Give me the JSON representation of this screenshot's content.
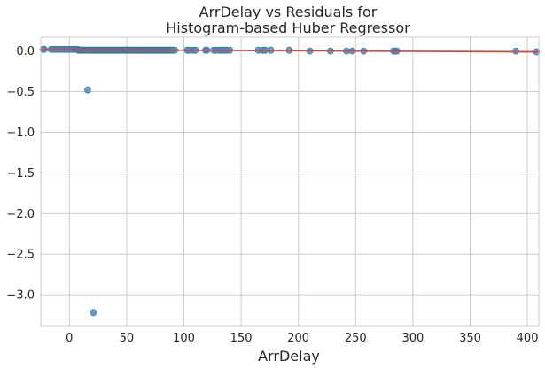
{
  "chart_data": {
    "type": "scatter",
    "title_lines": [
      "ArrDelay vs Residuals for",
      "Histogram-based Huber Regressor"
    ],
    "xlabel": "ArrDelay",
    "ylabel": "",
    "xlim": [
      -25,
      410
    ],
    "ylim": [
      -3.38,
      0.17
    ],
    "xticks": [
      0,
      50,
      100,
      150,
      200,
      250,
      300,
      350,
      400
    ],
    "yticks": [
      0.0,
      -0.5,
      -1.0,
      -1.5,
      -2.0,
      -2.5,
      -3.0
    ],
    "grid": true,
    "point_color": "#4c8bbf",
    "point_edge_color": "#3a6f9c",
    "fit_line_color": "#d9453d",
    "fit_line": {
      "x": [
        -25,
        410
      ],
      "y": [
        0.02,
        -0.012
      ]
    },
    "points": {
      "x": [
        -23,
        -22,
        -16,
        -14,
        -12,
        -10,
        -8,
        -6,
        -4,
        -2,
        0,
        2,
        4,
        6,
        7,
        8,
        9,
        10,
        11,
        12,
        13,
        14,
        15,
        16,
        17,
        18,
        19,
        20,
        21,
        22,
        23,
        24,
        25,
        26,
        27,
        28,
        29,
        30,
        31,
        32,
        33,
        34,
        35,
        36,
        37,
        38,
        39,
        40,
        41,
        42,
        43,
        44,
        45,
        46,
        47,
        48,
        49,
        50,
        51,
        52,
        53,
        54,
        55,
        56,
        57,
        58,
        59,
        60,
        61,
        62,
        63,
        64,
        65,
        66,
        67,
        68,
        69,
        70,
        71,
        72,
        73,
        74,
        75,
        76,
        77,
        78,
        79,
        80,
        81,
        82,
        83,
        84,
        85,
        86,
        87,
        88,
        89,
        90,
        92,
        103,
        105,
        108,
        110,
        119,
        120,
        126,
        128,
        131,
        133,
        135,
        137,
        140,
        165,
        169,
        171,
        176,
        192,
        210,
        228,
        242,
        247,
        257,
        283,
        285,
        286,
        390,
        408,
        16,
        21
      ],
      "y": [
        0.02,
        0.02,
        0.02,
        0.02,
        0.02,
        0.02,
        0.02,
        0.02,
        0.02,
        0.02,
        0.02,
        0.02,
        0.02,
        0.02,
        0.02,
        0.01,
        0.01,
        0.01,
        0.01,
        0.01,
        0.01,
        0.01,
        0.01,
        0.01,
        0.01,
        0.01,
        0.01,
        0.01,
        0.01,
        0.01,
        0.01,
        0.01,
        0.01,
        0.01,
        0.01,
        0.01,
        0.01,
        0.01,
        0.01,
        0.01,
        0.01,
        0.01,
        0.01,
        0.01,
        0.01,
        0.01,
        0.01,
        0.01,
        0.01,
        0.01,
        0.01,
        0.01,
        0.01,
        0.01,
        0.01,
        0.01,
        0.01,
        0.01,
        0.01,
        0.01,
        0.01,
        0.01,
        0.01,
        0.01,
        0.01,
        0.01,
        0.01,
        0.01,
        0.01,
        0.01,
        0.01,
        0.01,
        0.01,
        0.01,
        0.01,
        0.01,
        0.01,
        0.01,
        0.01,
        0.01,
        0.01,
        0.01,
        0.01,
        0.01,
        0.01,
        0.01,
        0.01,
        0.01,
        0.01,
        0.01,
        0.01,
        0.01,
        0.01,
        0.01,
        0.01,
        0.01,
        0.01,
        0.01,
        0.01,
        0.01,
        0.01,
        0.01,
        0.01,
        0.01,
        0.01,
        0.01,
        0.01,
        0.01,
        0.01,
        0.01,
        0.01,
        0.01,
        0.01,
        0.01,
        0.01,
        0.01,
        0.01,
        0.0,
        0.0,
        0.0,
        0.0,
        0.0,
        0.0,
        0.0,
        0.0,
        0.0,
        -0.01,
        -0.48,
        -3.22
      ]
    }
  }
}
